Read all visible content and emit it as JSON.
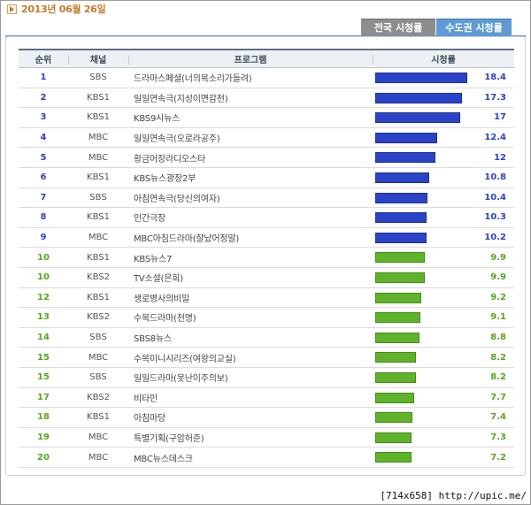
{
  "header": {
    "date": "2013년 06월 26일"
  },
  "tabs": [
    {
      "label": "전국 시청률"
    },
    {
      "label": "수도권 시청률"
    }
  ],
  "table": {
    "columns": [
      "순위",
      "채널",
      "프로그램",
      "시청률"
    ],
    "rows": [
      {
        "rank": "1",
        "channel": "SBS",
        "program": "드라마스페셜(너의목소리가들려)",
        "rating": "18.4",
        "value": 18.4,
        "bar_color": "blue"
      },
      {
        "rank": "2",
        "channel": "KBS1",
        "program": "일일연속극(지성이면감천)",
        "rating": "17.3",
        "value": 17.3,
        "bar_color": "blue"
      },
      {
        "rank": "3",
        "channel": "KBS1",
        "program": "KBS9시뉴스",
        "rating": "17",
        "value": 17,
        "bar_color": "blue"
      },
      {
        "rank": "4",
        "channel": "MBC",
        "program": "일일연속극(오로라공주)",
        "rating": "12.4",
        "value": 12.4,
        "bar_color": "blue"
      },
      {
        "rank": "5",
        "channel": "MBC",
        "program": "황금어장라디오스타",
        "rating": "12",
        "value": 12,
        "bar_color": "blue"
      },
      {
        "rank": "6",
        "channel": "KBS1",
        "program": "KBS뉴스광장2부",
        "rating": "10.8",
        "value": 10.8,
        "bar_color": "blue"
      },
      {
        "rank": "7",
        "channel": "SBS",
        "program": "아침연속극(당신의여자)",
        "rating": "10.4",
        "value": 10.4,
        "bar_color": "blue"
      },
      {
        "rank": "8",
        "channel": "KBS1",
        "program": "인간극장",
        "rating": "10.3",
        "value": 10.3,
        "bar_color": "blue"
      },
      {
        "rank": "9",
        "channel": "MBC",
        "program": "MBC아침드라마(잘났어정말)",
        "rating": "10.2",
        "value": 10.2,
        "bar_color": "blue"
      },
      {
        "rank": "10",
        "channel": "KBS1",
        "program": "KBS뉴스7",
        "rating": "9.9",
        "value": 9.9,
        "bar_color": "green"
      },
      {
        "rank": "10",
        "channel": "KBS2",
        "program": "TV소설(은희)",
        "rating": "9.9",
        "value": 9.9,
        "bar_color": "green"
      },
      {
        "rank": "12",
        "channel": "KBS1",
        "program": "생로병사의비밀",
        "rating": "9.2",
        "value": 9.2,
        "bar_color": "green"
      },
      {
        "rank": "13",
        "channel": "KBS2",
        "program": "수목드라마(천명)",
        "rating": "9.1",
        "value": 9.1,
        "bar_color": "green"
      },
      {
        "rank": "14",
        "channel": "SBS",
        "program": "SBS8뉴스",
        "rating": "8.8",
        "value": 8.8,
        "bar_color": "green"
      },
      {
        "rank": "15",
        "channel": "MBC",
        "program": "수목미니시리즈(여왕의교실)",
        "rating": "8.2",
        "value": 8.2,
        "bar_color": "green"
      },
      {
        "rank": "15",
        "channel": "SBS",
        "program": "일일드라마(못난이주의보)",
        "rating": "8.2",
        "value": 8.2,
        "bar_color": "green"
      },
      {
        "rank": "17",
        "channel": "KBS2",
        "program": "비타민",
        "rating": "7.7",
        "value": 7.7,
        "bar_color": "green"
      },
      {
        "rank": "18",
        "channel": "KBS1",
        "program": "아침마당",
        "rating": "7.4",
        "value": 7.4,
        "bar_color": "green"
      },
      {
        "rank": "19",
        "channel": "MBC",
        "program": "특별기획(구암허준)",
        "rating": "7.3",
        "value": 7.3,
        "bar_color": "green"
      },
      {
        "rank": "20",
        "channel": "MBC",
        "program": "MBC뉴스데스크",
        "rating": "7.2",
        "value": 7.2,
        "bar_color": "green"
      }
    ]
  },
  "footer": {
    "text": "[714x658] http://upic.me/"
  },
  "colors": {
    "blue": "#2b44c7",
    "green": "#5fb32b",
    "date": "#c47a2a",
    "tab_active": "#5e9ad4",
    "tab_inactive": "#8d8d8d"
  }
}
